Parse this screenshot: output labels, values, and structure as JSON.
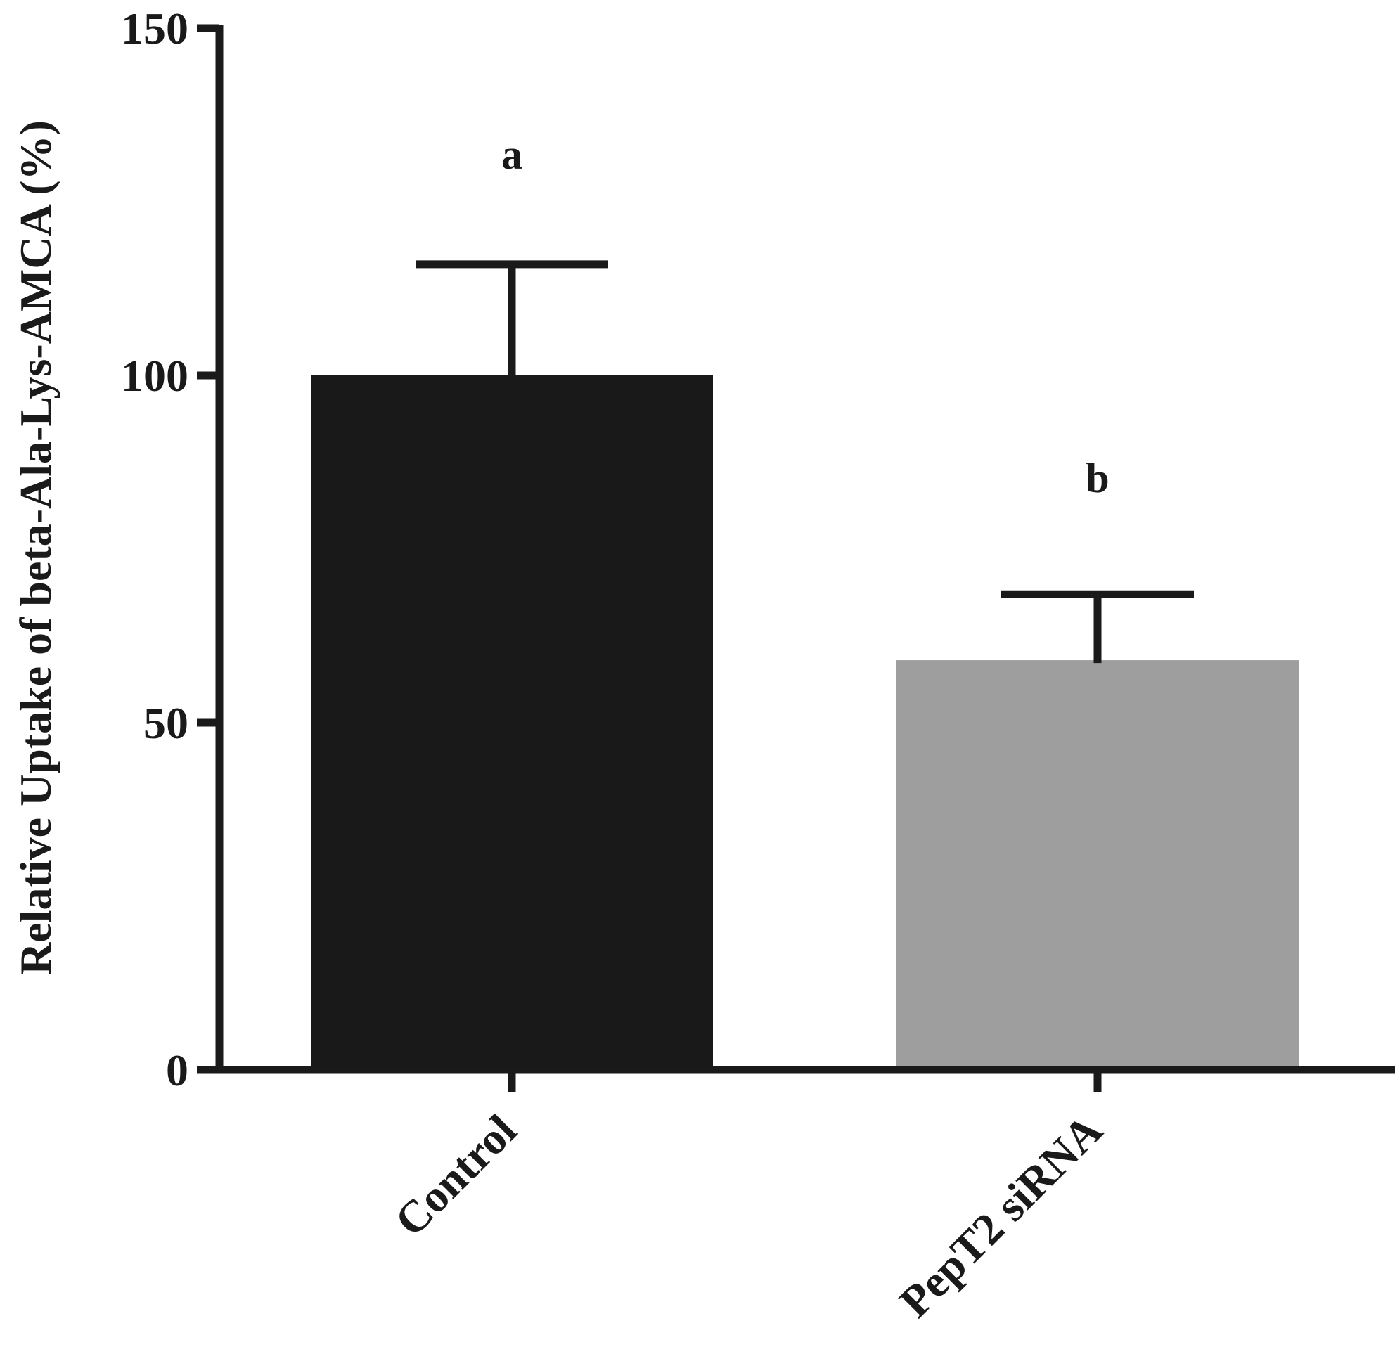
{
  "chart_data": {
    "type": "bar",
    "title": "",
    "xlabel": "",
    "ylabel": "Relative Uptake of beta-Ala-Lys-AMCA (%)",
    "ylim": [
      0,
      150
    ],
    "yticks": [
      0,
      50,
      100,
      150
    ],
    "grid": false,
    "categories": [
      "Control",
      "PepT2 siRNA"
    ],
    "values": [
      100,
      59
    ],
    "errors": [
      16,
      9.5
    ],
    "significance_labels": [
      "a",
      "b"
    ],
    "bar_colors": [
      "#191919",
      "#9e9e9e"
    ],
    "axis_color": "#1a1a1a"
  }
}
